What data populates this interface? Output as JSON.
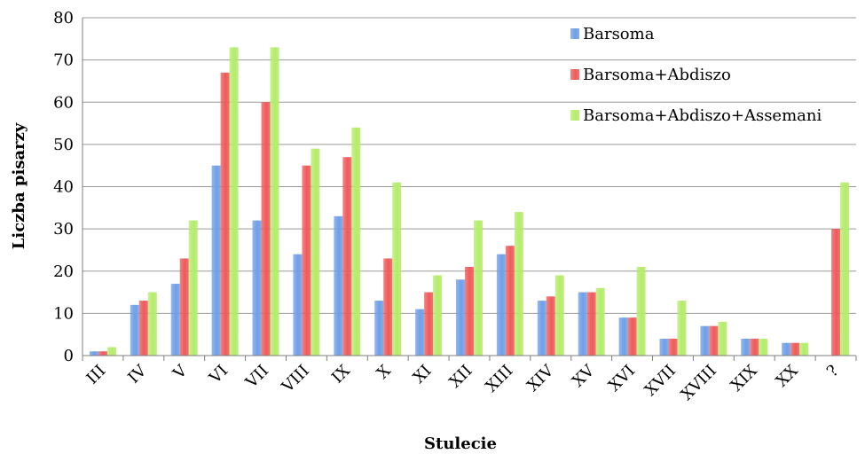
{
  "chart_data": {
    "type": "bar",
    "title": "",
    "xlabel": "Stulecie",
    "ylabel": "Liczba pisarzy",
    "ylim": [
      0,
      80
    ],
    "yticks": [
      0,
      10,
      20,
      30,
      40,
      50,
      60,
      70,
      80
    ],
    "grid": "horizontal",
    "legend_position": "top-right",
    "categories": [
      "III",
      "IV",
      "V",
      "VI",
      "VII",
      "VIII",
      "IX",
      "X",
      "XI",
      "XII",
      "XIII",
      "XIV",
      "XV",
      "XVI",
      "XVII",
      "XVIII",
      "XIX",
      "XX",
      "?"
    ],
    "series": [
      {
        "name": "Barsoma",
        "color": "#6f9fe8",
        "values": [
          1,
          12,
          17,
          45,
          32,
          24,
          33,
          13,
          11,
          18,
          24,
          13,
          15,
          9,
          4,
          7,
          4,
          3,
          0
        ]
      },
      {
        "name": "Barsoma+Abdiszo",
        "color": "#ef5a5a",
        "values": [
          1,
          13,
          23,
          67,
          60,
          45,
          47,
          23,
          15,
          21,
          26,
          14,
          15,
          9,
          4,
          7,
          4,
          3,
          30
        ]
      },
      {
        "name": "Barsoma+Abdiszo+Assemani",
        "color": "#b4ec6a",
        "values": [
          2,
          15,
          32,
          73,
          73,
          49,
          54,
          41,
          19,
          32,
          34,
          19,
          16,
          21,
          13,
          8,
          4,
          3,
          41
        ]
      }
    ]
  }
}
